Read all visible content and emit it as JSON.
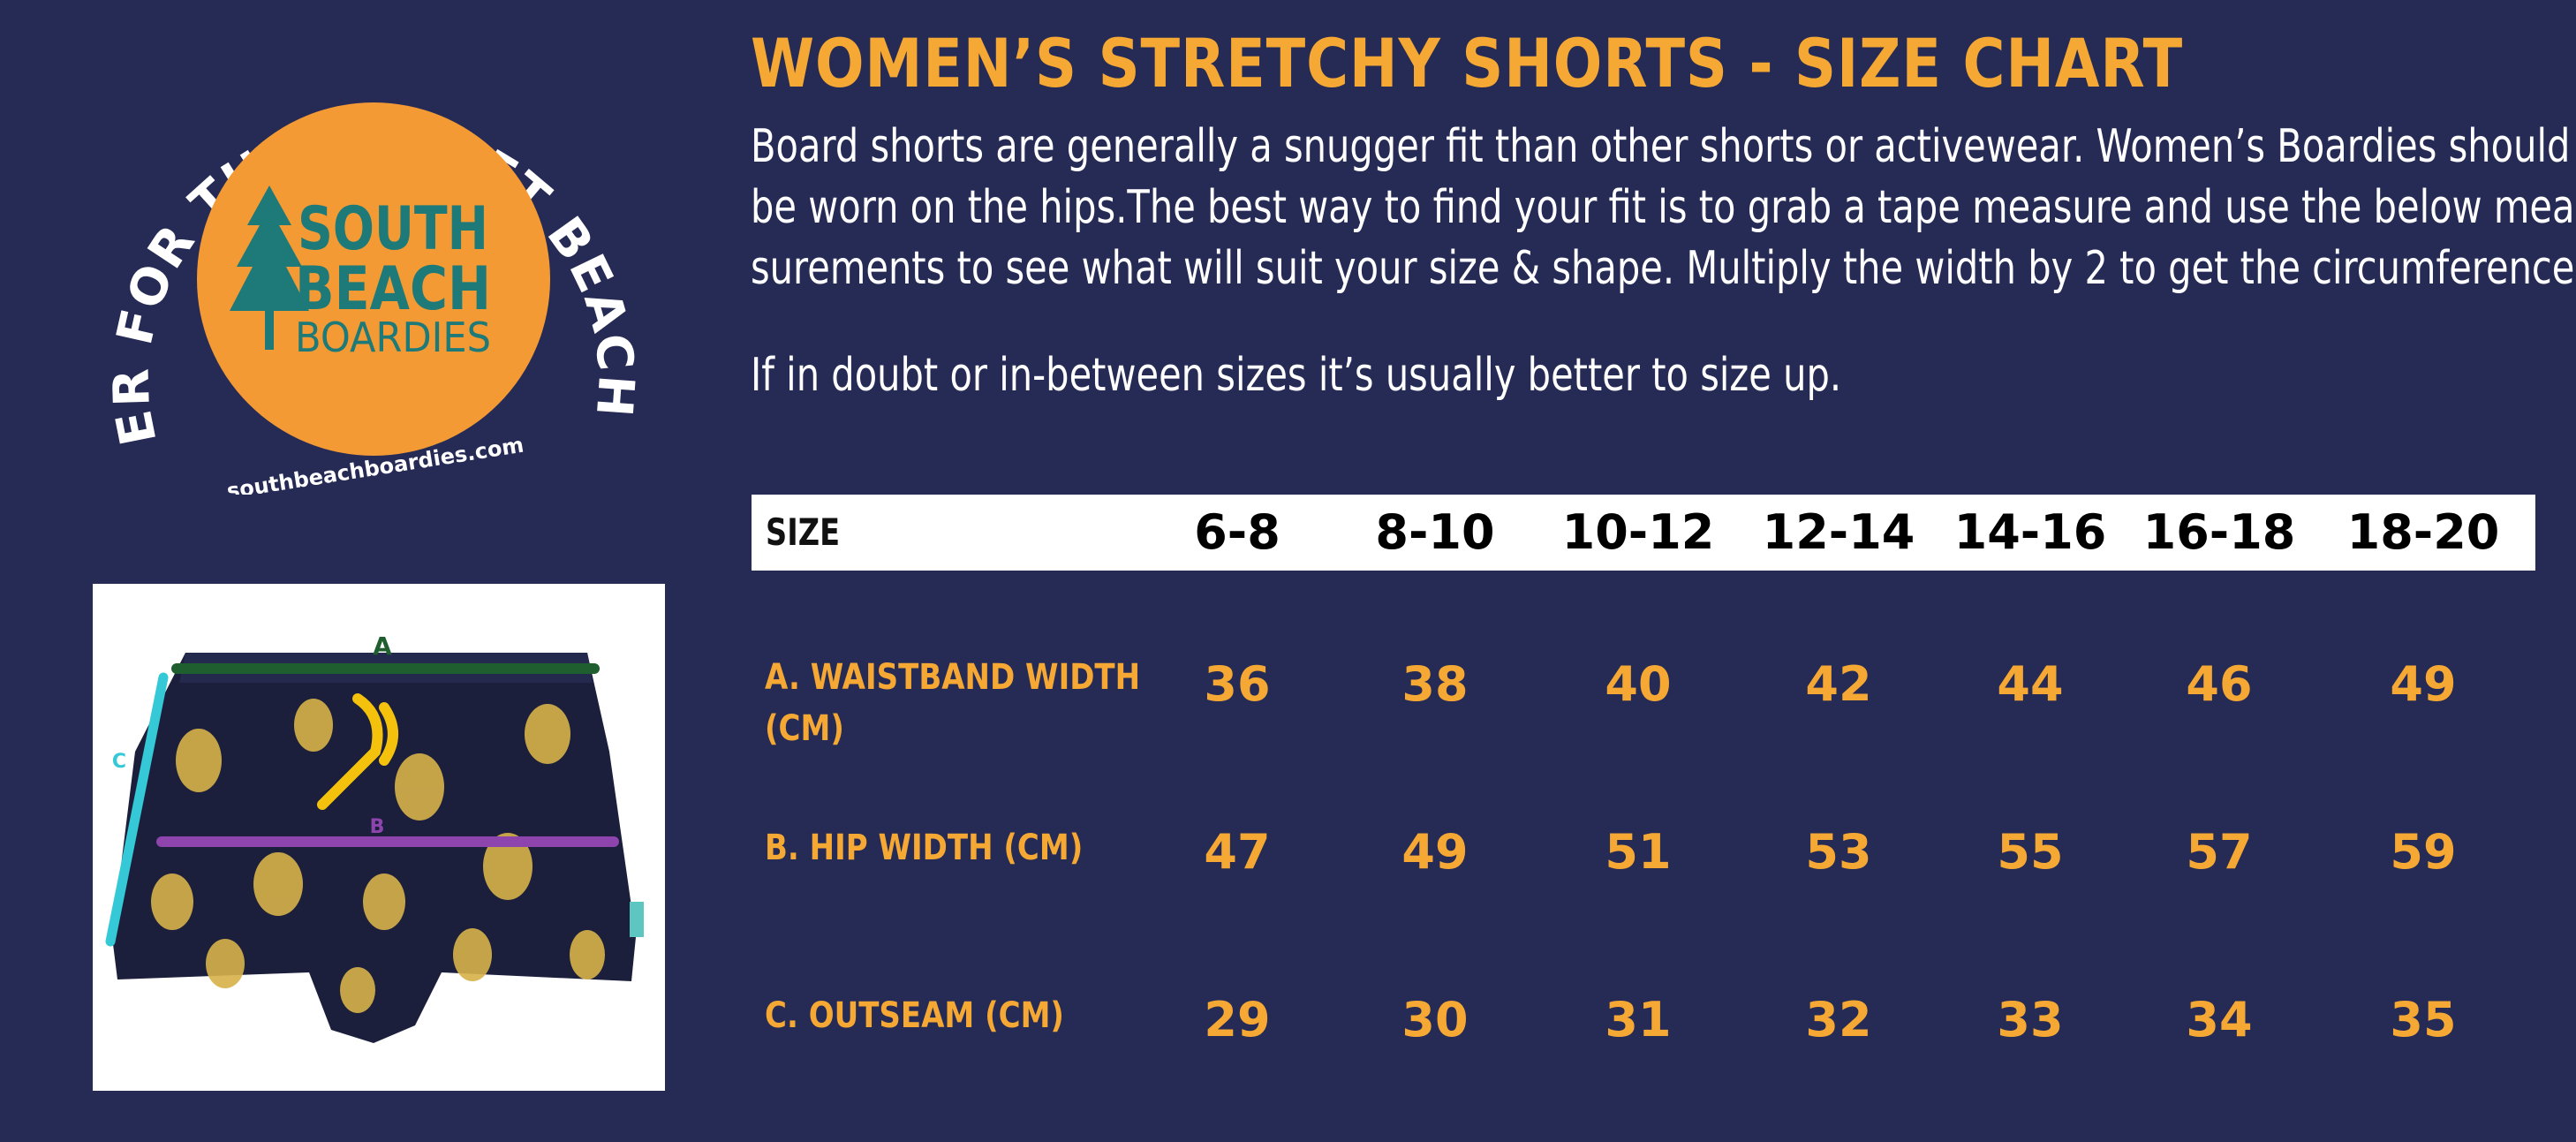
{
  "logo": {
    "arc_text": "BETTER FOR THE PLANET BEACHWEAR",
    "brand_line1": "SOUTH",
    "brand_line2": "BEACH",
    "brand_line3": "BOARDIES",
    "website": "southbeachboardies.com",
    "colors": {
      "circle": "#f39a35",
      "teal": "#1d7a78",
      "text": "#ffffff"
    }
  },
  "photo": {
    "marker_a": "A",
    "marker_b": "B",
    "marker_c": "C",
    "colors": {
      "a_line": "#1f5e2f",
      "b_line": "#8e44ad",
      "c_line": "#35c8d6",
      "shorts": "#1b1f3b",
      "pattern": "#d8b24a"
    }
  },
  "header": {
    "title": "WOMEN’S STRETCHY SHORTS - SIZE CHART",
    "desc_line1": "Board shorts are generally a snugger fit than other shorts or activewear. Women’s Boardies should",
    "desc_line2": "be worn on the hips.The best way to find your fit is to grab a tape measure and use the below mea-",
    "desc_line3": "surements to see what will suit your size & shape. Multiply the width by 2 to get the circumference",
    "note": "If in doubt or in-between sizes it’s usually better to size up."
  },
  "table": {
    "size_label": "SIZE",
    "sizes": [
      "6-8",
      "8-10",
      "10-12",
      "12-14",
      "14-16",
      "16-18",
      "18-20"
    ],
    "rows": [
      {
        "label_line1": "A. WAISTBAND WIDTH",
        "label_line2": "(CM)",
        "values": [
          "36",
          "38",
          "40",
          "42",
          "44",
          "46",
          "49"
        ]
      },
      {
        "label_line1": "B. HIP WIDTH (CM)",
        "values": [
          "47",
          "49",
          "51",
          "53",
          "55",
          "57",
          "59"
        ]
      },
      {
        "label_line1": "C. OUTSEAM (CM)",
        "values": [
          "29",
          "30",
          "31",
          "32",
          "33",
          "34",
          "35"
        ]
      }
    ]
  },
  "colors": {
    "background": "#262b55",
    "accent": "#f5a833",
    "text": "#ffffff"
  }
}
